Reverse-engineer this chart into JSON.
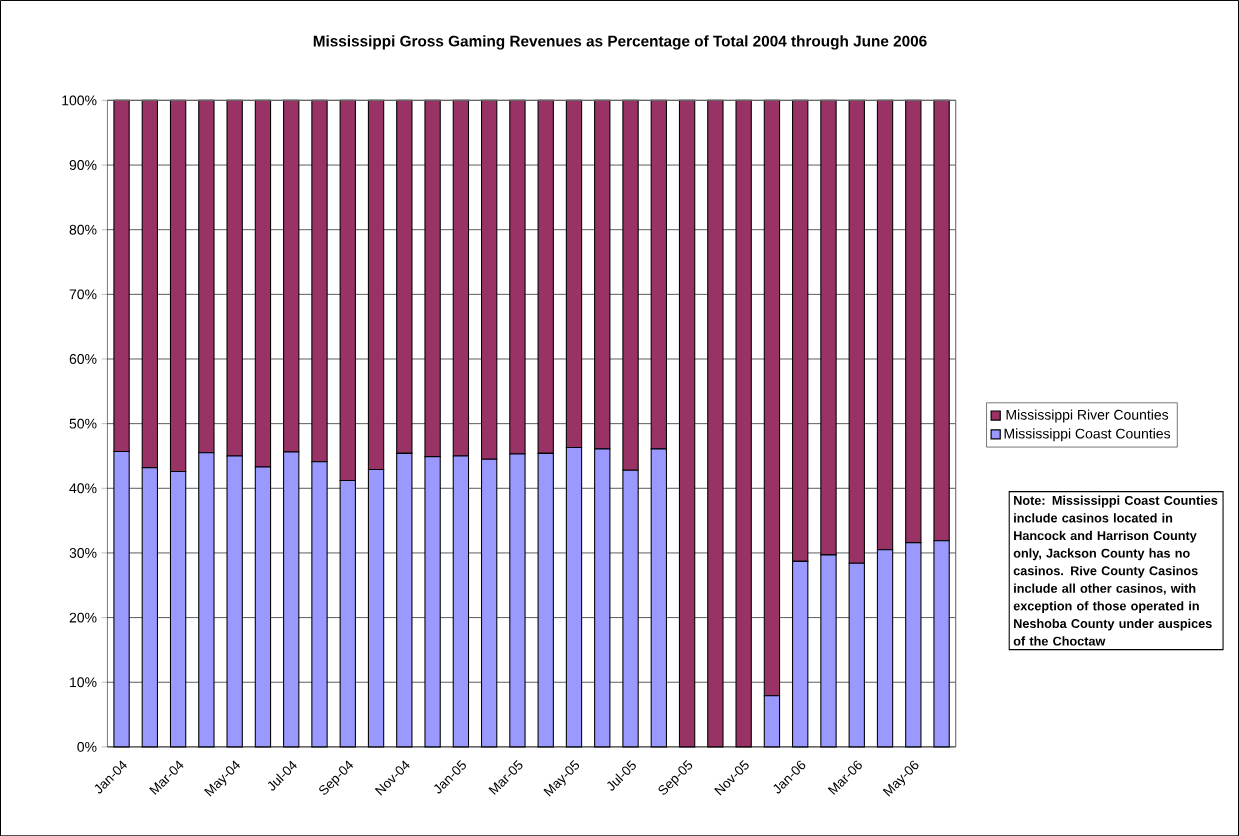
{
  "chart_data": {
    "type": "bar",
    "stacked": true,
    "title": "Mississippi Gross Gaming Revenues as Percentage of Total 2004 through June 2006",
    "categories": [
      "Jan-04",
      null,
      "Mar-04",
      null,
      "May-04",
      null,
      "Jul-04",
      null,
      "Sep-04",
      null,
      "Nov-04",
      null,
      "Jan-05",
      null,
      "Mar-05",
      null,
      "May-05",
      null,
      "Jul-05",
      null,
      "Sep-05",
      null,
      "Nov-05",
      null,
      "Jan-06",
      null,
      "Mar-06",
      null,
      "May-06",
      null
    ],
    "series": [
      {
        "name": "Mississippi Coast Counties",
        "color": "#9999ff",
        "values": [
          45.7,
          43.2,
          42.6,
          45.5,
          45.0,
          43.3,
          45.6,
          44.1,
          41.2,
          42.9,
          45.4,
          44.9,
          45.0,
          44.5,
          45.3,
          45.4,
          46.3,
          46.1,
          42.8,
          46.1,
          0,
          0,
          0,
          7.9,
          28.7,
          29.7,
          28.4,
          30.5,
          31.6,
          31.9
        ]
      },
      {
        "name": "Mississippi River Counties",
        "color": "#993366",
        "values": [
          54.3,
          56.8,
          57.4,
          54.5,
          55.0,
          56.7,
          54.4,
          55.9,
          58.8,
          57.1,
          54.6,
          55.1,
          55.0,
          55.5,
          54.7,
          54.6,
          53.7,
          53.9,
          57.2,
          53.9,
          100,
          100,
          100,
          92.1,
          71.3,
          70.3,
          71.6,
          69.5,
          68.4,
          68.1
        ]
      }
    ],
    "ylim": [
      0,
      100
    ],
    "yticks": [
      {
        "value": 0,
        "label": "0%"
      },
      {
        "value": 10,
        "label": "10%"
      },
      {
        "value": 20,
        "label": "20%"
      },
      {
        "value": 30,
        "label": "30%"
      },
      {
        "value": 40,
        "label": "40%"
      },
      {
        "value": 50,
        "label": "50%"
      },
      {
        "value": 60,
        "label": "60%"
      },
      {
        "value": 70,
        "label": "70%"
      },
      {
        "value": 80,
        "label": "80%"
      },
      {
        "value": 90,
        "label": "90%"
      },
      {
        "value": 100,
        "label": "100%"
      }
    ],
    "grid": "y",
    "legend": "right",
    "annotations": [
      "Note: Mississippi Coast Counties include casinos located in Hancock and Harrison County only, Jackson County has no casinos.  Rive County Casinos include all other casinos, with exception of those operated in Neshoba County under auspices of the Choctaw"
    ]
  }
}
